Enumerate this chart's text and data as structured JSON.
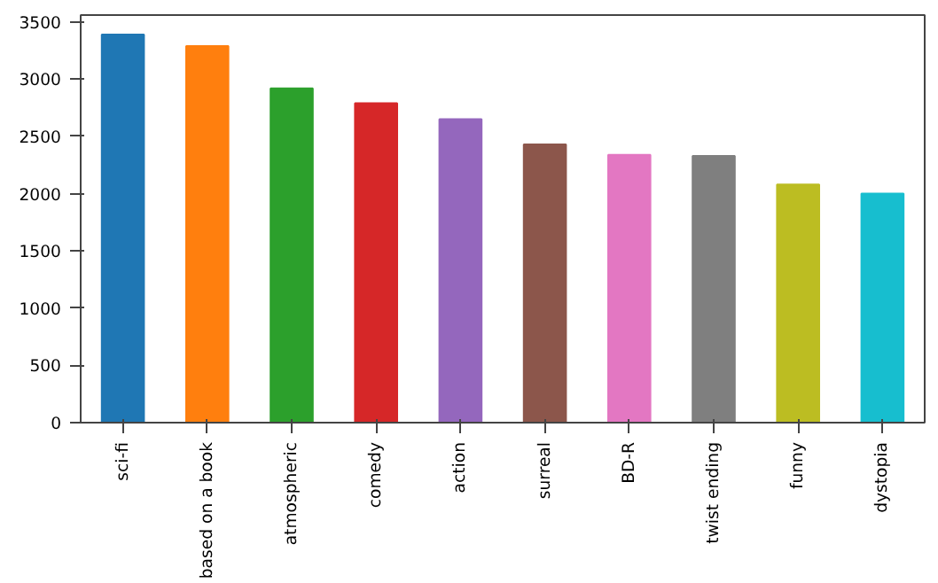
{
  "chart_data": {
    "type": "bar",
    "categories": [
      "sci-fi",
      "based on a book",
      "atmospheric",
      "comedy",
      "action",
      "surreal",
      "BD-R",
      "twist ending",
      "funny",
      "dystopia"
    ],
    "values": [
      3390,
      3290,
      2920,
      2790,
      2650,
      2430,
      2340,
      2330,
      2080,
      2000
    ],
    "colors": [
      "#1f77b4",
      "#ff7f0e",
      "#2ca02c",
      "#d62728",
      "#9467bd",
      "#8c564b",
      "#e377c2",
      "#7f7f7f",
      "#bcbd22",
      "#17becf"
    ],
    "ylim": [
      0,
      3560
    ],
    "yticks": [
      0,
      500,
      1000,
      1500,
      2000,
      2500,
      3000,
      3500
    ],
    "grid": false
  }
}
